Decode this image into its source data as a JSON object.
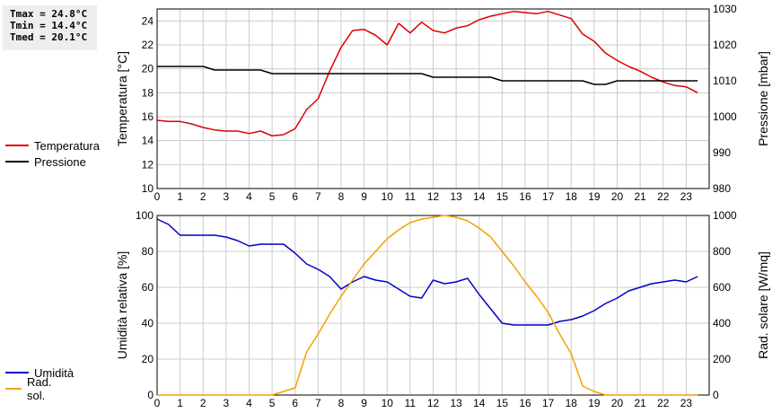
{
  "stats": {
    "tmax": "Tmax = 24.8°C",
    "tmin": "Tmin = 14.4°C",
    "tmed": "Tmed = 20.1°C"
  },
  "colors": {
    "temperature": "#dd0000",
    "pressure": "#000000",
    "humidity": "#0000cc",
    "radiation": "#f5a000"
  },
  "chart_data": [
    {
      "type": "line",
      "x": [
        0,
        0.5,
        1,
        1.5,
        2,
        2.5,
        3,
        3.5,
        4,
        4.5,
        5,
        5.5,
        6,
        6.5,
        7,
        7.5,
        8,
        8.5,
        9,
        9.5,
        10,
        10.5,
        11,
        11.5,
        12,
        12.5,
        13,
        13.5,
        14,
        14.5,
        15,
        15.5,
        16,
        16.5,
        17,
        17.5,
        18,
        18.5,
        19,
        19.5,
        20,
        20.5,
        21,
        21.5,
        22,
        22.5,
        23,
        23.5
      ],
      "xticks": [
        "0",
        "1",
        "2",
        "3",
        "4",
        "5",
        "6",
        "7",
        "8",
        "9",
        "10",
        "11",
        "12",
        "13",
        "14",
        "15",
        "16",
        "17",
        "18",
        "19",
        "20",
        "21",
        "22",
        "23"
      ],
      "xlim": [
        0,
        24
      ],
      "ylabel": "Temperatura [°C]",
      "ylim": [
        10,
        25
      ],
      "yticks": [
        "10",
        "12",
        "14",
        "16",
        "18",
        "20",
        "22",
        "24"
      ],
      "y2label": "Pressione [mbar]",
      "y2lim": [
        980,
        1030
      ],
      "y2ticks": [
        "980",
        "990",
        "1000",
        "1010",
        "1020",
        "1030"
      ],
      "grid": true,
      "legend_position": "left",
      "series": [
        {
          "name": "Temperatura",
          "axis": "left",
          "color": "#dd0000",
          "values": [
            15.7,
            15.6,
            15.6,
            15.4,
            15.1,
            14.9,
            14.8,
            14.8,
            14.6,
            14.8,
            14.4,
            14.5,
            15.0,
            16.6,
            17.5,
            19.8,
            21.8,
            23.2,
            23.3,
            22.8,
            22.0,
            23.8,
            23.0,
            23.9,
            23.2,
            23.0,
            23.4,
            23.6,
            24.1,
            24.4,
            24.6,
            24.8,
            24.7,
            24.6,
            24.8,
            24.5,
            24.2,
            22.9,
            22.3,
            21.3,
            20.7,
            20.2,
            19.8,
            19.3,
            18.9,
            18.6,
            18.5,
            18.0
          ]
        },
        {
          "name": "Pressione",
          "axis": "right",
          "color": "#000000",
          "values": [
            1014,
            1014,
            1014,
            1014,
            1014,
            1013,
            1013,
            1013,
            1013,
            1013,
            1012,
            1012,
            1012,
            1012,
            1012,
            1012,
            1012,
            1012,
            1012,
            1012,
            1012,
            1012,
            1012,
            1012,
            1011,
            1011,
            1011,
            1011,
            1011,
            1011,
            1010,
            1010,
            1010,
            1010,
            1010,
            1010,
            1010,
            1010,
            1009,
            1009,
            1010,
            1010,
            1010,
            1010,
            1010,
            1010,
            1010,
            1010
          ]
        }
      ]
    },
    {
      "type": "line",
      "x": [
        0,
        0.5,
        1,
        1.5,
        2,
        2.5,
        3,
        3.5,
        4,
        4.5,
        5,
        5.5,
        6,
        6.5,
        7,
        7.5,
        8,
        8.5,
        9,
        9.5,
        10,
        10.5,
        11,
        11.5,
        12,
        12.5,
        13,
        13.5,
        14,
        14.5,
        15,
        15.5,
        16,
        16.5,
        17,
        17.5,
        18,
        18.5,
        19,
        19.5,
        20,
        20.5,
        21,
        21.5,
        22,
        22.5,
        23,
        23.5
      ],
      "xticks": [
        "0",
        "1",
        "2",
        "3",
        "4",
        "5",
        "6",
        "7",
        "8",
        "9",
        "10",
        "11",
        "12",
        "13",
        "14",
        "15",
        "16",
        "17",
        "18",
        "19",
        "20",
        "21",
        "22",
        "23"
      ],
      "xlim": [
        0,
        24
      ],
      "ylabel": "Umidità relativa [%]",
      "ylim": [
        0,
        100
      ],
      "yticks": [
        "0",
        "20",
        "40",
        "60",
        "80",
        "100"
      ],
      "y2label": "Rad. solare [W/mq]",
      "y2lim": [
        0,
        1000
      ],
      "y2ticks": [
        "0",
        "200",
        "400",
        "600",
        "800",
        "1000"
      ],
      "grid": true,
      "legend_position": "left",
      "series": [
        {
          "name": "Umidità",
          "axis": "left",
          "color": "#0000cc",
          "values": [
            98,
            95,
            89,
            89,
            89,
            89,
            88,
            86,
            83,
            84,
            84,
            84,
            79,
            73,
            70,
            66,
            59,
            63,
            66,
            64,
            63,
            59,
            55,
            54,
            64,
            62,
            63,
            65,
            56,
            48,
            40,
            39,
            39,
            39,
            39,
            41,
            42,
            44,
            47,
            51,
            54,
            58,
            60,
            62,
            63,
            64,
            63,
            66
          ]
        },
        {
          "name": "Rad. sol.",
          "axis": "right",
          "color": "#f5a000",
          "values": [
            0,
            0,
            0,
            0,
            0,
            0,
            0,
            0,
            0,
            0,
            0,
            20,
            40,
            240,
            340,
            450,
            550,
            640,
            730,
            800,
            870,
            920,
            960,
            980,
            990,
            1000,
            990,
            970,
            930,
            880,
            800,
            720,
            630,
            550,
            460,
            340,
            230,
            50,
            20,
            0,
            0,
            0,
            0,
            0,
            0,
            0,
            0,
            0
          ]
        }
      ]
    }
  ]
}
